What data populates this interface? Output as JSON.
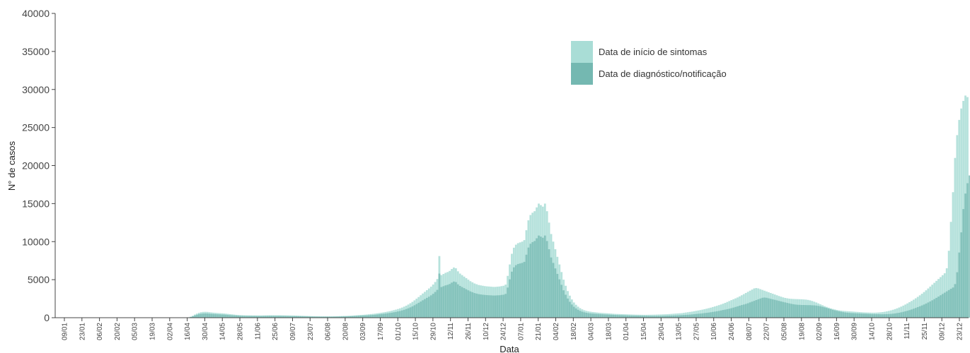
{
  "chart_data": {
    "type": "bar",
    "title": "",
    "xlabel": "Data",
    "ylabel": "N° de casos",
    "ylim": [
      0,
      40000
    ],
    "y_ticks": [
      0,
      5000,
      10000,
      15000,
      20000,
      25000,
      30000,
      35000,
      40000
    ],
    "x_tick_labels": [
      "09/01",
      "23/01",
      "06/02",
      "20/02",
      "05/03",
      "19/03",
      "02/04",
      "16/04",
      "30/04",
      "14/05",
      "28/05",
      "11/06",
      "25/06",
      "09/07",
      "23/07",
      "06/08",
      "20/08",
      "03/09",
      "17/09",
      "01/10",
      "15/10",
      "29/10",
      "12/11",
      "26/11",
      "10/12",
      "24/12",
      "07/01",
      "21/01",
      "04/02",
      "18/02",
      "04/03",
      "18/03",
      "01/04",
      "15/04",
      "29/04",
      "13/05",
      "27/05",
      "10/06",
      "24/06",
      "08/07",
      "22/07",
      "05/08",
      "19/08",
      "02/09",
      "16/09",
      "30/09",
      "14/10",
      "28/10",
      "11/11",
      "25/11",
      "09/12",
      "23/12"
    ],
    "legend_position": "top-right",
    "series": [
      {
        "name": "Data de início de sintomas",
        "color": "#a9ddd6",
        "values": [
          0,
          0,
          0,
          0,
          0,
          0,
          0,
          0,
          0,
          0,
          0,
          0,
          0,
          0,
          0,
          0,
          0,
          0,
          0,
          0,
          0,
          0,
          0,
          0,
          0,
          0,
          0,
          0,
          0,
          0,
          0,
          0,
          0,
          0,
          0,
          0,
          0,
          0,
          0,
          0,
          0,
          0,
          0,
          0,
          0,
          0,
          0,
          0,
          0,
          0,
          0,
          0,
          0,
          0,
          0,
          0,
          0,
          0,
          0,
          0,
          0,
          0,
          0,
          0,
          60,
          140,
          260,
          420,
          540,
          650,
          720,
          760,
          770,
          760,
          720,
          690,
          660,
          640,
          620,
          600,
          580,
          560,
          530,
          500,
          470,
          440,
          410,
          380,
          360,
          340,
          330,
          320,
          315,
          310,
          310,
          305,
          305,
          300,
          300,
          300,
          305,
          310,
          315,
          320,
          320,
          320,
          320,
          320,
          320,
          315,
          310,
          305,
          300,
          295,
          290,
          285,
          280,
          270,
          260,
          250,
          240,
          230,
          220,
          210,
          200,
          195,
          190,
          185,
          180,
          180,
          180,
          180,
          180,
          180,
          185,
          190,
          200,
          210,
          220,
          230,
          240,
          250,
          265,
          280,
          300,
          320,
          340,
          360,
          380,
          400,
          420,
          450,
          480,
          510,
          540,
          580,
          620,
          660,
          700,
          750,
          800,
          860,
          920,
          990,
          1060,
          1140,
          1230,
          1330,
          1450,
          1580,
          1730,
          1900,
          2080,
          2280,
          2500,
          2720,
          2950,
          3180,
          3400,
          3620,
          3840,
          4080,
          4360,
          4690,
          5080,
          8100,
          5600,
          5750,
          5900,
          6000,
          6150,
          6400,
          6600,
          6500,
          6100,
          5800,
          5600,
          5400,
          5200,
          5000,
          4800,
          4650,
          4500,
          4400,
          4300,
          4250,
          4200,
          4150,
          4120,
          4100,
          4080,
          4050,
          4050,
          4080,
          4100,
          4150,
          4200,
          4350,
          5500,
          7000,
          8400,
          9200,
          9600,
          9800,
          9900,
          10000,
          10200,
          11500,
          12800,
          13500,
          13800,
          14000,
          14500,
          15000,
          14800,
          14600,
          15000,
          14000,
          12500,
          11000,
          10000,
          9000,
          8000,
          7000,
          6000,
          5000,
          4200,
          3500,
          2900,
          2400,
          2000,
          1700,
          1450,
          1250,
          1100,
          980,
          900,
          840,
          790,
          750,
          720,
          690,
          660,
          640,
          620,
          600,
          580,
          560,
          540,
          520,
          500,
          490,
          480,
          470,
          460,
          450,
          440,
          430,
          420,
          410,
          400,
          395,
          390,
          385,
          380,
          380,
          385,
          390,
          395,
          400,
          410,
          420,
          430,
          440,
          450,
          460,
          480,
          500,
          520,
          540,
          560,
          580,
          600,
          640,
          680,
          720,
          760,
          800,
          850,
          900,
          950,
          1000,
          1060,
          1120,
          1180,
          1250,
          1320,
          1400,
          1480,
          1560,
          1650,
          1740,
          1840,
          1950,
          2070,
          2190,
          2310,
          2430,
          2540,
          2660,
          2800,
          2950,
          3100,
          3250,
          3400,
          3550,
          3700,
          3850,
          3900,
          3850,
          3750,
          3650,
          3550,
          3450,
          3350,
          3250,
          3150,
          3050,
          2950,
          2850,
          2760,
          2670,
          2600,
          2550,
          2500,
          2480,
          2460,
          2450,
          2440,
          2430,
          2420,
          2400,
          2380,
          2340,
          2280,
          2200,
          2100,
          2000,
          1880,
          1760,
          1640,
          1520,
          1420,
          1320,
          1230,
          1150,
          1080,
          1020,
          970,
          930,
          900,
          880,
          860,
          840,
          820,
          800,
          780,
          760,
          740,
          720,
          700,
          690,
          680,
          670,
          660,
          660,
          670,
          690,
          710,
          740,
          780,
          830,
          890,
          960,
          1040,
          1130,
          1230,
          1340,
          1460,
          1590,
          1730,
          1880,
          2040,
          2200,
          2370,
          2550,
          2740,
          2940,
          3150,
          3370,
          3600,
          3840,
          4090,
          4340,
          4590,
          4840,
          5090,
          5340,
          5590,
          5840,
          6500,
          8800,
          12600,
          16500,
          21000,
          24000,
          26000,
          27500,
          28500,
          29200,
          29000
        ]
      },
      {
        "name": "Data de diagnóstico/notificação",
        "color": "#74b8b1",
        "values": [
          0,
          0,
          0,
          0,
          0,
          0,
          0,
          0,
          0,
          0,
          0,
          0,
          0,
          0,
          0,
          0,
          0,
          0,
          0,
          0,
          0,
          0,
          0,
          0,
          0,
          0,
          0,
          0,
          0,
          0,
          0,
          0,
          0,
          0,
          0,
          0,
          0,
          0,
          0,
          0,
          0,
          0,
          0,
          0,
          0,
          0,
          0,
          0,
          0,
          0,
          0,
          0,
          0,
          0,
          0,
          0,
          0,
          0,
          0,
          0,
          0,
          0,
          0,
          0,
          40,
          90,
          180,
          300,
          390,
          470,
          520,
          550,
          560,
          550,
          520,
          500,
          480,
          470,
          450,
          440,
          420,
          410,
          390,
          360,
          340,
          320,
          300,
          280,
          260,
          250,
          240,
          235,
          230,
          225,
          225,
          220,
          220,
          215,
          215,
          215,
          220,
          225,
          230,
          235,
          235,
          235,
          235,
          235,
          235,
          230,
          225,
          220,
          215,
          210,
          205,
          200,
          195,
          190,
          185,
          180,
          175,
          170,
          160,
          150,
          145,
          140,
          140,
          135,
          130,
          130,
          130,
          130,
          130,
          130,
          135,
          140,
          145,
          150,
          160,
          170,
          175,
          180,
          190,
          200,
          215,
          230,
          245,
          260,
          275,
          290,
          300,
          325,
          345,
          365,
          390,
          420,
          450,
          480,
          510,
          540,
          580,
          620,
          660,
          710,
          760,
          820,
          880,
          960,
          1040,
          1140,
          1240,
          1360,
          1490,
          1640,
          1800,
          1960,
          2120,
          2290,
          2450,
          2610,
          2760,
          2940,
          3140,
          3380,
          3660,
          5800,
          4030,
          4140,
          4250,
          4320,
          4430,
          4610,
          4750,
          4680,
          4390,
          4180,
          4030,
          3890,
          3740,
          3600,
          3460,
          3350,
          3240,
          3170,
          3100,
          3060,
          3020,
          2990,
          2970,
          2950,
          2940,
          2920,
          2920,
          2940,
          2950,
          2990,
          3020,
          3130,
          3960,
          5040,
          6050,
          6620,
          6910,
          7060,
          7130,
          7200,
          7340,
          8280,
          9220,
          9720,
          9940,
          10080,
          10440,
          10800,
          10660,
          10510,
          10800,
          10080,
          9000,
          7920,
          7200,
          6480,
          5760,
          5040,
          4320,
          3600,
          3020,
          2520,
          2090,
          1730,
          1440,
          1220,
          1040,
          900,
          790,
          710,
          650,
          600,
          570,
          540,
          520,
          500,
          480,
          460,
          450,
          430,
          420,
          400,
          390,
          380,
          360,
          350,
          340,
          330,
          320,
          310,
          300,
          290,
          280,
          270,
          265,
          260,
          255,
          250,
          245,
          240,
          235,
          230,
          225,
          225,
          230,
          235,
          240,
          245,
          250,
          260,
          270,
          280,
          290,
          300,
          310,
          325,
          340,
          355,
          375,
          390,
          405,
          430,
          460,
          490,
          520,
          540,
          570,
          610,
          640,
          670,
          715,
          760,
          800,
          845,
          890,
          950,
          1010,
          1060,
          1120,
          1180,
          1250,
          1330,
          1410,
          1490,
          1580,
          1660,
          1730,
          1810,
          1900,
          2010,
          2110,
          2210,
          2320,
          2420,
          2520,
          2620,
          2650,
          2620,
          2550,
          2480,
          2410,
          2350,
          2280,
          2210,
          2140,
          2070,
          2010,
          1940,
          1880,
          1820,
          1770,
          1730,
          1700,
          1690,
          1670,
          1670,
          1660,
          1650,
          1650,
          1630,
          1620,
          1590,
          1550,
          1500,
          1430,
          1360,
          1280,
          1200,
          1120,
          1030,
          970,
          900,
          840,
          780,
          730,
          690,
          660,
          630,
          610,
          600,
          580,
          570,
          560,
          540,
          530,
          520,
          500,
          490,
          470,
          470,
          460,
          460,
          450,
          450,
          460,
          470,
          480,
          500,
          530,
          560,
          610,
          650,
          710,
          770,
          840,
          910,
          990,
          1080,
          1180,
          1280,
          1390,
          1500,
          1610,
          1730,
          1860,
          2000,
          2140,
          2290,
          2450,
          2610,
          2780,
          2950,
          3120,
          3290,
          3460,
          3630,
          3800,
          3970,
          4420,
          5980,
          8570,
          11220,
          14280,
          16320,
          17680,
          18700,
          19380,
          19860,
          19720
        ]
      }
    ]
  }
}
